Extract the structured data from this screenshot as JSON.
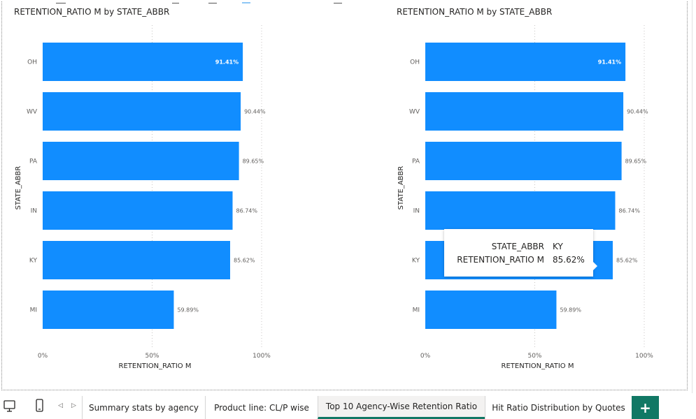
{
  "colors": {
    "bar": "#118DFF",
    "accent": "#117865",
    "text": "#252423",
    "axis": "#605e5c",
    "grid": "#c8c6c4"
  },
  "chart_data": [
    {
      "type": "bar",
      "orientation": "horizontal",
      "title": "RETENTION_RATIO M by STATE_ABBR",
      "xlabel": "RETENTION_RATIO M",
      "ylabel": "STATE_ABBR",
      "categories": [
        "OH",
        "WV",
        "PA",
        "IN",
        "KY",
        "MI"
      ],
      "values": [
        91.41,
        90.44,
        89.65,
        86.74,
        85.62,
        59.89
      ],
      "value_labels": [
        "91.41%",
        "90.44%",
        "89.65%",
        "86.74%",
        "85.62%",
        "59.89%"
      ],
      "xlim": [
        0,
        100
      ],
      "xticks": [
        "0%",
        "50%",
        "100%"
      ],
      "grid": true
    },
    {
      "type": "bar",
      "orientation": "horizontal",
      "title": "RETENTION_RATIO M by STATE_ABBR",
      "xlabel": "RETENTION_RATIO M",
      "ylabel": "STATE_ABBR",
      "categories": [
        "OH",
        "WV",
        "PA",
        "IN",
        "KY",
        "MI"
      ],
      "values": [
        91.41,
        90.44,
        89.65,
        86.74,
        85.62,
        59.89
      ],
      "value_labels": [
        "91.41%",
        "90.44%",
        "89.65%",
        "86.74%",
        "85.62%",
        "59.89%"
      ],
      "xlim": [
        0,
        100
      ],
      "xticks": [
        "0%",
        "50%",
        "100%"
      ],
      "grid": true
    }
  ],
  "tooltip": {
    "rows": [
      {
        "key": "STATE_ABBR",
        "value": "KY"
      },
      {
        "key": "RETENTION_RATIO M",
        "value": "85.62%"
      }
    ]
  },
  "bottom_bar": {
    "tabs": [
      {
        "label": "Summary stats by agency",
        "active": false
      },
      {
        "label": "Product line: CL/P wise",
        "active": false
      },
      {
        "label": "Top 10 Agency-Wise Retention Ratio",
        "active": true
      },
      {
        "label": "Hit Ratio Distribution by Quotes",
        "active": false
      }
    ],
    "add_label": "+",
    "prev_icon": "chevron-left-icon",
    "next_icon": "chevron-right-icon",
    "desktop_icon": "desktop-view-icon",
    "mobile_icon": "mobile-view-icon"
  }
}
